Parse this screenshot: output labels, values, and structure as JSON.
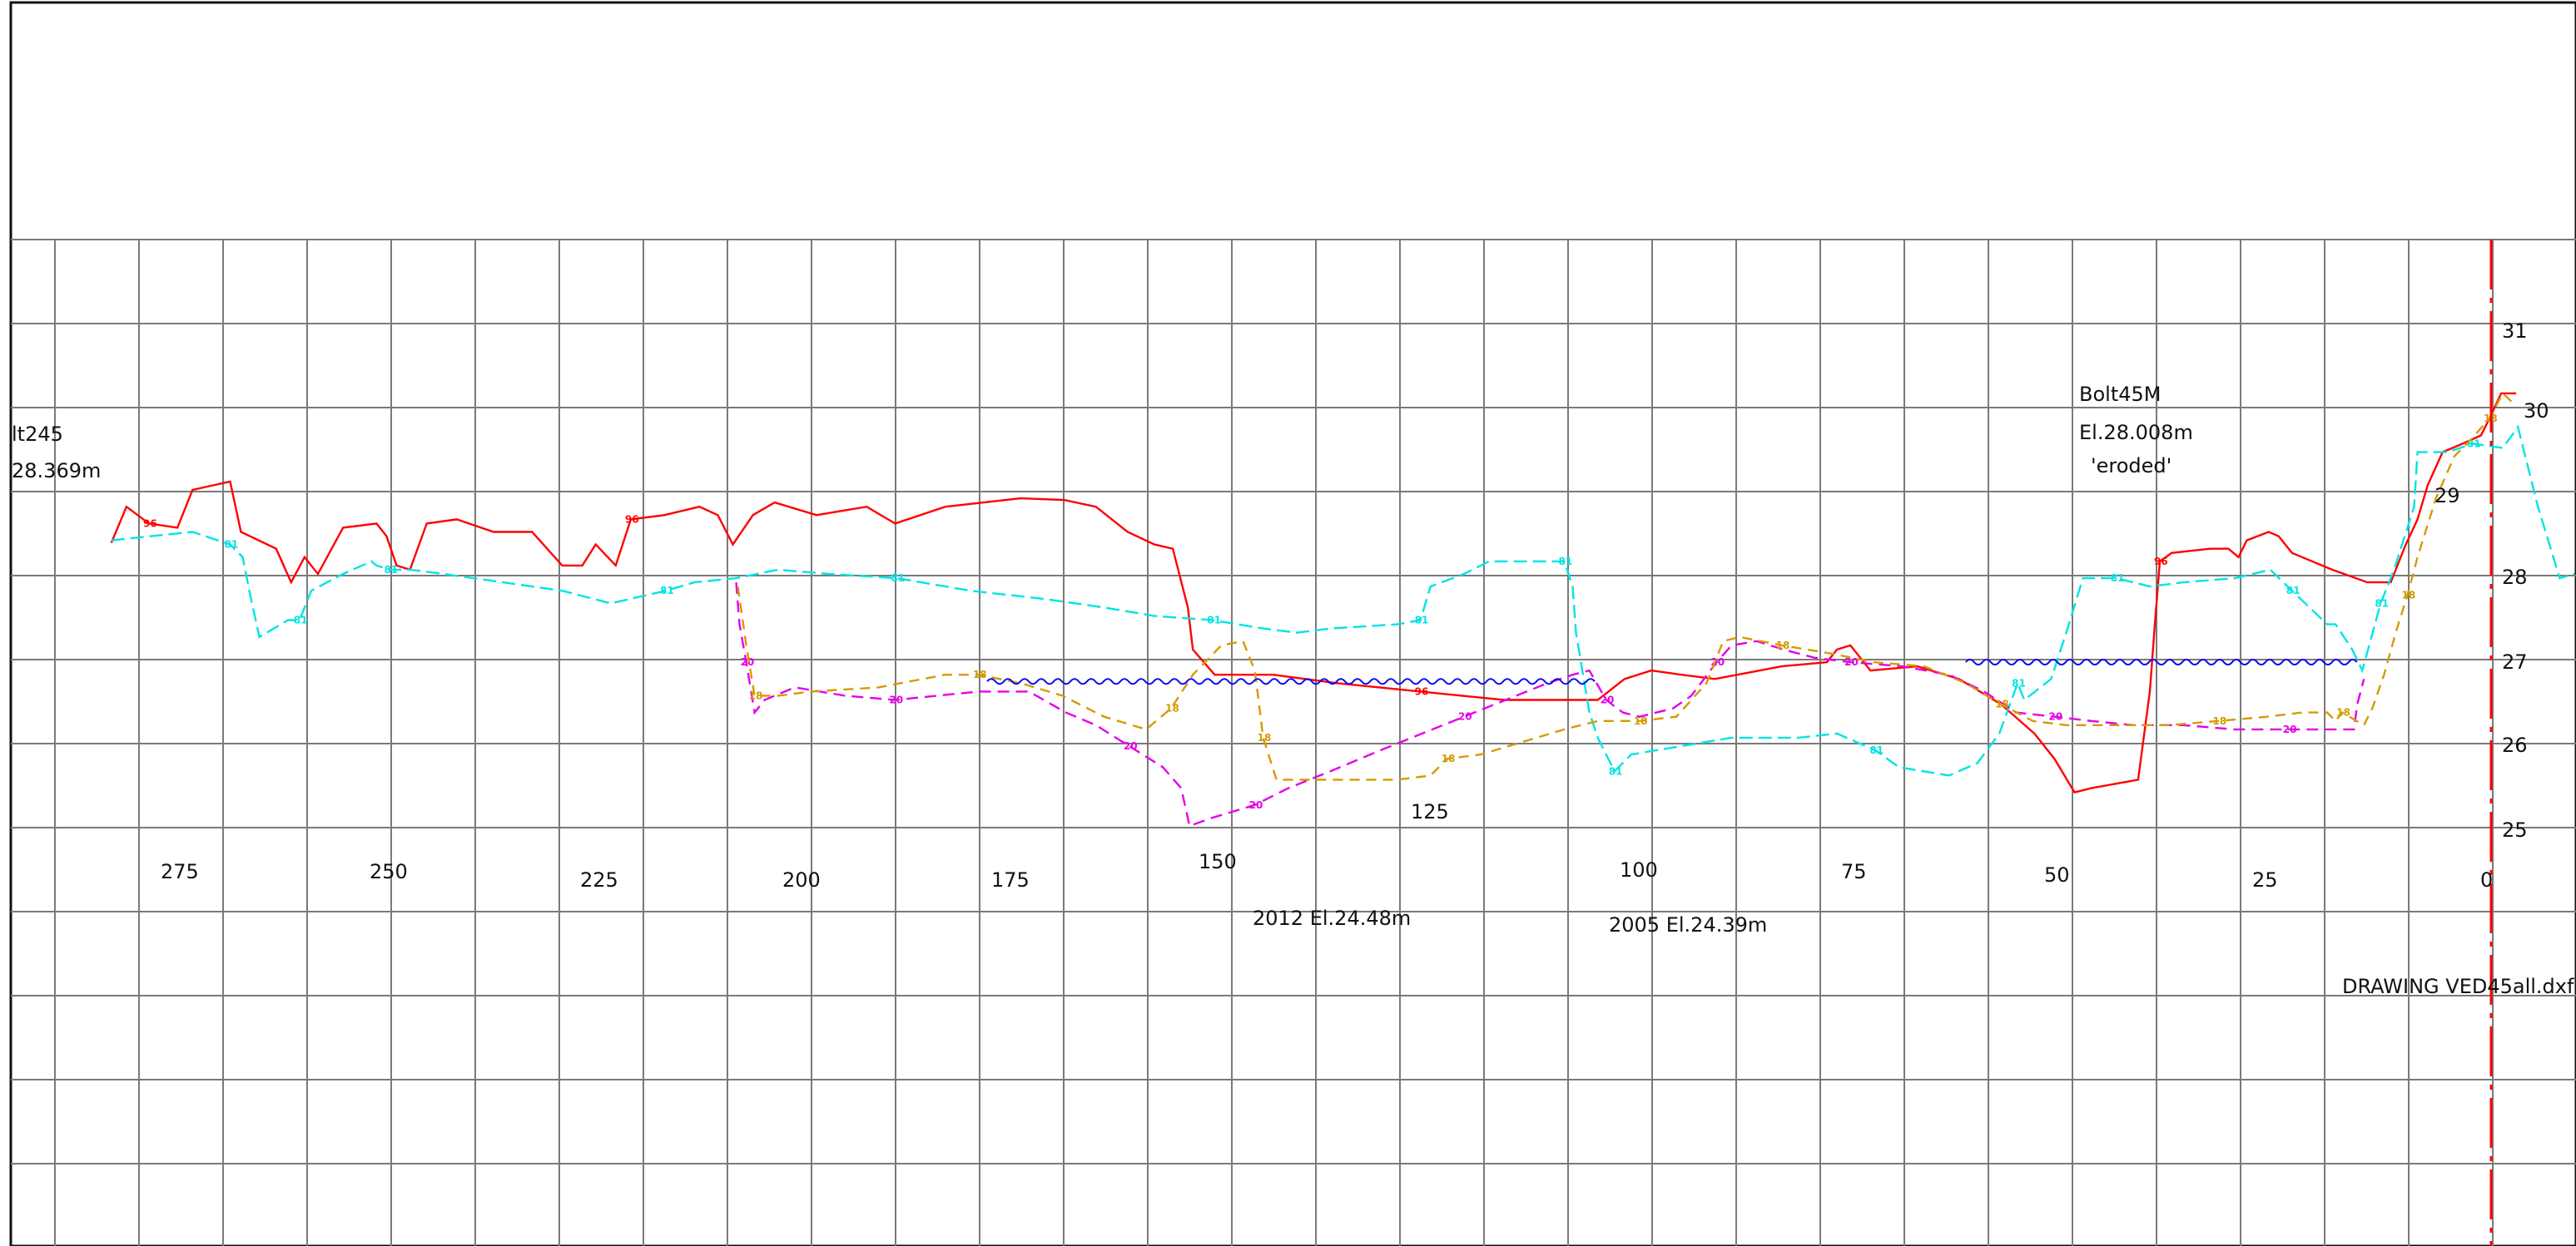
{
  "drawing": {
    "file_label": "DRAWING  VED45all.dxf",
    "background": "#ffffff",
    "grid_color": "#7a7a7a"
  },
  "station_labels": [
    "275",
    "250",
    "225",
    "200",
    "175",
    "150",
    "125",
    "100",
    "75",
    "50",
    "25",
    "0"
  ],
  "elevation_labels": [
    "31",
    "30",
    "29",
    "28",
    "27",
    "26",
    "25"
  ],
  "annotations": {
    "bolt_left_name": "lt245",
    "bolt_left_elev": "28.369m",
    "bolt_right_name": "Bolt45M",
    "bolt_right_elev": "El.28.008m",
    "bolt_right_note": "'eroded'",
    "survey_2012": "2012  El.24.48m",
    "survey_2005": "2005  El.24.39m"
  },
  "chart_data": {
    "type": "line",
    "x_axis": "station (reversed, 0 at right)",
    "y_axis": "elevation (m)",
    "xlim": [
      0,
      290
    ],
    "ylim": [
      24,
      31
    ],
    "grid": true,
    "series": [
      {
        "name": "96",
        "color": "#ff0000",
        "dash": "",
        "points": [
          [
            284.5,
            28.37
          ],
          [
            282.7,
            28.8
          ],
          [
            280,
            28.6
          ],
          [
            276.6,
            28.55
          ],
          [
            274.8,
            29
          ],
          [
            270.3,
            29.1
          ],
          [
            269,
            28.5
          ],
          [
            264.8,
            28.3
          ],
          [
            263,
            27.9
          ],
          [
            261.4,
            28.2
          ],
          [
            259.8,
            28
          ],
          [
            256.8,
            28.55
          ],
          [
            252.8,
            28.6
          ],
          [
            251.6,
            28.45
          ],
          [
            250.4,
            28.1
          ],
          [
            248.8,
            28.05
          ],
          [
            246.8,
            28.6
          ],
          [
            243.2,
            28.65
          ],
          [
            238.8,
            28.5
          ],
          [
            234.2,
            28.5
          ],
          [
            230.6,
            28.1
          ],
          [
            228.2,
            28.1
          ],
          [
            226.6,
            28.35
          ],
          [
            224.2,
            28.1
          ],
          [
            222.4,
            28.65
          ],
          [
            218.4,
            28.7
          ],
          [
            214.2,
            28.8
          ],
          [
            212,
            28.7
          ],
          [
            210.2,
            28.35
          ],
          [
            207.8,
            28.7
          ],
          [
            205.2,
            28.85
          ],
          [
            200.2,
            28.7
          ],
          [
            194.2,
            28.8
          ],
          [
            190.8,
            28.6
          ],
          [
            184.8,
            28.8
          ],
          [
            175.8,
            28.9
          ],
          [
            170.6,
            28.88
          ],
          [
            166.8,
            28.8
          ],
          [
            163,
            28.5
          ],
          [
            159.8,
            28.35
          ],
          [
            157.6,
            28.3
          ],
          [
            155.8,
            27.6
          ],
          [
            155.2,
            27.1
          ],
          [
            152.6,
            26.8
          ],
          [
            145.6,
            26.8
          ],
          [
            138,
            26.7
          ],
          [
            128,
            26.6
          ],
          [
            118,
            26.5
          ],
          [
            106.8,
            26.5
          ],
          [
            103.6,
            26.75
          ],
          [
            100.4,
            26.85
          ],
          [
            96.8,
            26.8
          ],
          [
            92.8,
            26.75
          ],
          [
            84.8,
            26.9
          ],
          [
            79.4,
            26.95
          ],
          [
            78.2,
            27.1
          ],
          [
            76.6,
            27.15
          ],
          [
            74.2,
            26.85
          ],
          [
            68.6,
            26.9
          ],
          [
            63.6,
            26.75
          ],
          [
            58.6,
            26.45
          ],
          [
            54.6,
            26.1
          ],
          [
            52.2,
            25.8
          ],
          [
            49.8,
            25.4
          ],
          [
            47.8,
            25.45
          ],
          [
            42.2,
            25.55
          ],
          [
            40.8,
            26.6
          ],
          [
            40.2,
            27.4
          ],
          [
            39.6,
            28.15
          ],
          [
            38.2,
            28.25
          ],
          [
            33.6,
            28.3
          ],
          [
            31.4,
            28.3
          ],
          [
            30.2,
            28.2
          ],
          [
            29.2,
            28.4
          ],
          [
            26.6,
            28.5
          ],
          [
            25.4,
            28.45
          ],
          [
            23.8,
            28.25
          ],
          [
            19,
            28.05
          ],
          [
            14.8,
            27.9
          ],
          [
            12,
            27.9
          ],
          [
            10.2,
            28.35
          ],
          [
            8.8,
            28.65
          ],
          [
            7.6,
            29.05
          ],
          [
            5.8,
            29.45
          ],
          [
            3.4,
            29.55
          ],
          [
            1.2,
            29.65
          ],
          [
            0.2,
            29.85
          ],
          [
            -1.2,
            30.15
          ],
          [
            -3,
            30.15
          ]
        ]
      },
      {
        "name": "81",
        "color": "#00e4e4",
        "dash": "16 7",
        "points": [
          [
            284.5,
            28.4
          ],
          [
            274.8,
            28.5
          ],
          [
            270.3,
            28.35
          ],
          [
            268.8,
            28.2
          ],
          [
            267.8,
            27.7
          ],
          [
            266.8,
            27.25
          ],
          [
            263.4,
            27.45
          ],
          [
            262,
            27.45
          ],
          [
            260.6,
            27.8
          ],
          [
            256.8,
            28
          ],
          [
            253.4,
            28.15
          ],
          [
            252.8,
            28.1
          ],
          [
            251.2,
            28.05
          ],
          [
            248.8,
            28.05
          ],
          [
            244.8,
            28
          ],
          [
            230.6,
            27.8
          ],
          [
            224.8,
            27.65
          ],
          [
            218.2,
            27.8
          ],
          [
            214.8,
            27.9
          ],
          [
            209.8,
            27.95
          ],
          [
            204.8,
            28.05
          ],
          [
            198.8,
            28
          ],
          [
            190.6,
            27.95
          ],
          [
            181.8,
            27.8
          ],
          [
            172.8,
            27.7
          ],
          [
            165.8,
            27.6
          ],
          [
            159.8,
            27.5
          ],
          [
            152.8,
            27.45
          ],
          [
            146.8,
            27.35
          ],
          [
            142.8,
            27.3
          ],
          [
            138.8,
            27.35
          ],
          [
            130.8,
            27.4
          ],
          [
            128,
            27.45
          ],
          [
            126.8,
            27.85
          ],
          [
            122.8,
            28
          ],
          [
            119.8,
            28.15
          ],
          [
            115.6,
            28.15
          ],
          [
            110.8,
            28.15
          ],
          [
            109.8,
            27.85
          ],
          [
            109.4,
            27.3
          ],
          [
            107.8,
            26.35
          ],
          [
            106.8,
            26.05
          ],
          [
            104.8,
            25.65
          ],
          [
            102.8,
            25.85
          ],
          [
            90.8,
            26.05
          ],
          [
            82.8,
            26.05
          ],
          [
            78.2,
            26.1
          ],
          [
            73.6,
            25.9
          ],
          [
            70.8,
            25.7
          ],
          [
            64.8,
            25.6
          ],
          [
            61.4,
            25.75
          ],
          [
            58.8,
            26.1
          ],
          [
            56.6,
            26.7
          ],
          [
            55.8,
            26.5
          ],
          [
            52.6,
            26.75
          ],
          [
            50.8,
            27.3
          ],
          [
            48.8,
            27.95
          ],
          [
            44.8,
            27.95
          ],
          [
            40.8,
            27.85
          ],
          [
            36.8,
            27.9
          ],
          [
            30.6,
            27.95
          ],
          [
            26.4,
            28.05
          ],
          [
            23.8,
            27.8
          ],
          [
            19.6,
            27.4
          ],
          [
            18.6,
            27.4
          ],
          [
            16.6,
            27.1
          ],
          [
            15.4,
            26.85
          ],
          [
            13.2,
            27.65
          ],
          [
            11.6,
            28.05
          ],
          [
            9.2,
            28.8
          ],
          [
            8.8,
            29.45
          ],
          [
            5.2,
            29.45
          ],
          [
            2.2,
            29.55
          ],
          [
            -1.4,
            29.5
          ],
          [
            -3.2,
            29.75
          ],
          [
            -5.6,
            28.8
          ],
          [
            -8.2,
            27.95
          ],
          [
            -10,
            28
          ]
        ]
      },
      {
        "name": "20",
        "color": "#e600e6",
        "dash": "14 8",
        "points": [
          [
            209.8,
            27.9
          ],
          [
            209.4,
            27.4
          ],
          [
            208.6,
            26.95
          ],
          [
            207.6,
            26.35
          ],
          [
            206.4,
            26.5
          ],
          [
            202.8,
            26.65
          ],
          [
            196.8,
            26.55
          ],
          [
            190.8,
            26.5
          ],
          [
            180.8,
            26.6
          ],
          [
            174.8,
            26.6
          ],
          [
            170.4,
            26.35
          ],
          [
            166.8,
            26.2
          ],
          [
            162.8,
            25.95
          ],
          [
            158.8,
            25.7
          ],
          [
            156.6,
            25.45
          ],
          [
            155.6,
            25.0
          ],
          [
            152.8,
            25.1
          ],
          [
            147.8,
            25.25
          ],
          [
            143.8,
            25.45
          ],
          [
            138.8,
            25.65
          ],
          [
            132.8,
            25.9
          ],
          [
            127.8,
            26.1
          ],
          [
            122.8,
            26.3
          ],
          [
            117.8,
            26.5
          ],
          [
            112.8,
            26.7
          ],
          [
            109.8,
            26.8
          ],
          [
            107.8,
            26.85
          ],
          [
            105.8,
            26.5
          ],
          [
            103.8,
            26.35
          ],
          [
            101.8,
            26.3
          ],
          [
            97.8,
            26.4
          ],
          [
            95.6,
            26.55
          ],
          [
            92.6,
            26.95
          ],
          [
            90.8,
            27.15
          ],
          [
            87.8,
            27.2
          ],
          [
            84.6,
            27.1
          ],
          [
            80.8,
            27.0
          ],
          [
            76.6,
            26.95
          ],
          [
            70.4,
            26.9
          ],
          [
            64.8,
            26.8
          ],
          [
            60.6,
            26.6
          ],
          [
            56.8,
            26.35
          ],
          [
            52.2,
            26.3
          ],
          [
            47.8,
            26.25
          ],
          [
            42.8,
            26.2
          ],
          [
            36.8,
            26.2
          ],
          [
            30.8,
            26.15
          ],
          [
            24.2,
            26.15
          ],
          [
            19.8,
            26.15
          ],
          [
            16.4,
            26.15
          ],
          [
            16.0,
            26.45
          ],
          [
            15.2,
            26.75
          ]
        ]
      },
      {
        "name": "18",
        "color": "#d69a00",
        "dash": "12 8",
        "points": [
          [
            209.6,
            27.85
          ],
          [
            208.6,
            27.15
          ],
          [
            207.6,
            26.55
          ],
          [
            204.8,
            26.55
          ],
          [
            200.8,
            26.6
          ],
          [
            192.8,
            26.65
          ],
          [
            184.8,
            26.8
          ],
          [
            180.8,
            26.8
          ],
          [
            175.8,
            26.7
          ],
          [
            170.8,
            26.55
          ],
          [
            165.8,
            26.3
          ],
          [
            160.8,
            26.15
          ],
          [
            157.8,
            26.4
          ],
          [
            155.2,
            26.8
          ],
          [
            151.8,
            27.15
          ],
          [
            149.2,
            27.2
          ],
          [
            147.8,
            26.85
          ],
          [
            146.8,
            26.05
          ],
          [
            145.2,
            25.55
          ],
          [
            138.8,
            25.55
          ],
          [
            130.8,
            25.55
          ],
          [
            126.8,
            25.6
          ],
          [
            124.8,
            25.8
          ],
          [
            120.8,
            25.85
          ],
          [
            115.8,
            26.0
          ],
          [
            110.8,
            26.15
          ],
          [
            106.8,
            26.25
          ],
          [
            101.8,
            26.25
          ],
          [
            97.4,
            26.3
          ],
          [
            93.8,
            26.7
          ],
          [
            91.8,
            27.2
          ],
          [
            89.8,
            27.25
          ],
          [
            84.8,
            27.15
          ],
          [
            78.8,
            27.05
          ],
          [
            73.8,
            26.95
          ],
          [
            67.8,
            26.9
          ],
          [
            62.8,
            26.7
          ],
          [
            58.6,
            26.45
          ],
          [
            54.8,
            26.25
          ],
          [
            50.8,
            26.2
          ],
          [
            44.8,
            26.2
          ],
          [
            38.6,
            26.2
          ],
          [
            32.6,
            26.25
          ],
          [
            26.8,
            26.3
          ],
          [
            22.6,
            26.35
          ],
          [
            19.6,
            26.35
          ],
          [
            18.6,
            26.25
          ],
          [
            17.8,
            26.35
          ],
          [
            15.2,
            26.2
          ],
          [
            14.2,
            26.4
          ],
          [
            12.8,
            26.8
          ],
          [
            11.4,
            27.3
          ],
          [
            10.0,
            27.75
          ],
          [
            8.8,
            28.2
          ],
          [
            6.6,
            28.9
          ],
          [
            4.4,
            29.4
          ],
          [
            2.4,
            29.6
          ],
          [
            0.2,
            29.85
          ],
          [
            -1.4,
            30.15
          ],
          [
            -3,
            30.0
          ]
        ]
      },
      {
        "name": "water",
        "color": "#0a0aee",
        "dash": "",
        "wavy": true,
        "points": [
          [
            179.8,
            26.72
          ],
          [
            106.8,
            26.72
          ]
        ]
      },
      {
        "name": "water",
        "color": "#0a0aee",
        "dash": "",
        "wavy": true,
        "points": [
          [
            62.8,
            26.95
          ],
          [
            15.8,
            26.95
          ]
        ]
      }
    ]
  }
}
